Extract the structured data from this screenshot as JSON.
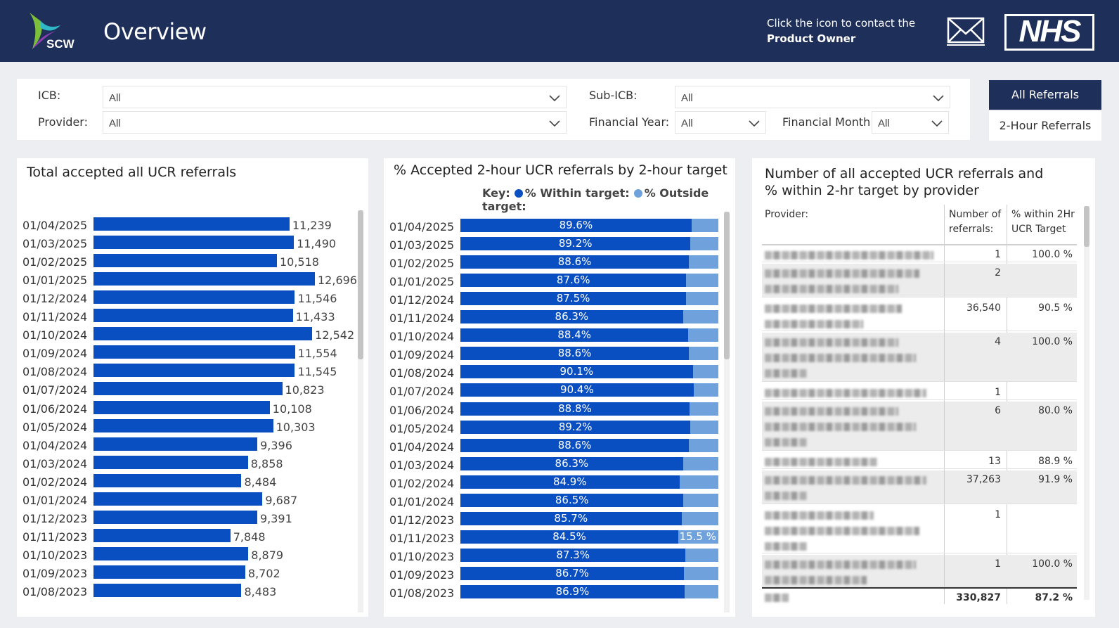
{
  "header": {
    "title": "Overview",
    "logo_text": "SCW",
    "contact_line1": "Click the icon to contact the",
    "contact_line2": "Product Owner",
    "nhs_logo": "NHS"
  },
  "filters": {
    "icb": {
      "label": "ICB:",
      "value": "All"
    },
    "provider": {
      "label": "Provider:",
      "value": "All"
    },
    "sub_icb": {
      "label": "Sub-ICB:",
      "value": "All"
    },
    "financial_year": {
      "label": "Financial Year:",
      "value": "All"
    },
    "financial_month": {
      "label": "Financial Month:",
      "value": "All"
    }
  },
  "toggle": {
    "all_referrals": "All Referrals",
    "two_hour_referrals": "2-Hour Referrals"
  },
  "colors": {
    "header_bg": "#1e2f5a",
    "bar_primary": "#0a4fc1",
    "bar_secondary": "#6fa2dc"
  },
  "panel1": {
    "title": "Total accepted all UCR referrals",
    "chart_data": {
      "type": "bar",
      "orientation": "horizontal",
      "categories": [
        "01/04/2025",
        "01/03/2025",
        "01/02/2025",
        "01/01/2025",
        "01/12/2024",
        "01/11/2024",
        "01/10/2024",
        "01/09/2024",
        "01/08/2024",
        "01/07/2024",
        "01/06/2024",
        "01/05/2024",
        "01/04/2024",
        "01/03/2024",
        "01/02/2024",
        "01/01/2024",
        "01/12/2023",
        "01/11/2023",
        "01/10/2023",
        "01/09/2023",
        "01/08/2023"
      ],
      "values": [
        11239,
        11490,
        10518,
        12696,
        11546,
        11433,
        12542,
        11554,
        11545,
        10823,
        10108,
        10303,
        9396,
        8858,
        8484,
        9687,
        9391,
        7848,
        8879,
        8702,
        8483
      ],
      "labels": [
        "11,239",
        "11,490",
        "10,518",
        "12,696",
        "11,546",
        "11,433",
        "12,542",
        "11,554",
        "11,545",
        "10,823",
        "10,108",
        "10,303",
        "9,396",
        "8,858",
        "8,484",
        "9,687",
        "9,391",
        "7,848",
        "8,879",
        "8,702",
        "8,483"
      ],
      "xlim": [
        0,
        12696
      ]
    }
  },
  "panel2": {
    "title": "% Accepted 2-hour UCR referrals by 2-hour target",
    "key_label": "Key:",
    "key_within": "% Within target:",
    "key_outside": "% Outside target:",
    "chart_data": {
      "type": "bar",
      "orientation": "horizontal",
      "stacked": true,
      "categories": [
        "01/04/2025",
        "01/03/2025",
        "01/02/2025",
        "01/01/2025",
        "01/12/2024",
        "01/11/2024",
        "01/10/2024",
        "01/09/2024",
        "01/08/2024",
        "01/07/2024",
        "01/06/2024",
        "01/05/2024",
        "01/04/2024",
        "01/03/2024",
        "01/02/2024",
        "01/01/2024",
        "01/12/2023",
        "01/11/2023",
        "01/10/2023",
        "01/09/2023",
        "01/08/2023"
      ],
      "series": [
        {
          "name": "% Within target",
          "values": [
            89.6,
            89.2,
            88.6,
            87.6,
            87.5,
            86.3,
            88.4,
            88.6,
            90.1,
            90.4,
            88.8,
            89.2,
            88.6,
            86.3,
            84.9,
            86.5,
            85.7,
            84.5,
            87.3,
            86.7,
            86.9
          ]
        },
        {
          "name": "% Outside target",
          "values": [
            10.4,
            10.8,
            11.4,
            12.4,
            12.5,
            13.7,
            11.6,
            11.4,
            9.9,
            9.6,
            11.2,
            10.8,
            11.4,
            13.7,
            15.1,
            13.5,
            14.3,
            15.5,
            12.7,
            13.3,
            13.1
          ]
        }
      ],
      "within_labels": [
        "89.6%",
        "89.2%",
        "88.6%",
        "87.6%",
        "87.5%",
        "86.3%",
        "88.4%",
        "88.6%",
        "90.1%",
        "90.4%",
        "88.8%",
        "89.2%",
        "88.6%",
        "86.3%",
        "84.9%",
        "86.5%",
        "85.7%",
        "84.5%",
        "87.3%",
        "86.7%",
        "86.9%"
      ],
      "outside_labels": [
        "",
        "",
        "",
        "",
        "",
        "",
        "",
        "",
        "",
        "",
        "",
        "",
        "",
        "",
        "",
        "",
        "",
        "15.5 %",
        "",
        "",
        ""
      ],
      "xlim": [
        0,
        100
      ]
    }
  },
  "panel3": {
    "title_line1": "Number of all accepted UCR referrals and",
    "title_line2": "% within 2-hr target by provider",
    "col_provider": "Provider:",
    "col_referrals_1": "Number of",
    "col_referrals_2": "referrals:",
    "col_pct_1": "% within 2Hr",
    "col_pct_2": "UCR Target",
    "rows": [
      {
        "referrals": "1",
        "pct": "100.0 %"
      },
      {
        "referrals": "2",
        "pct": ""
      },
      {
        "referrals": "36,540",
        "pct": "90.5 %"
      },
      {
        "referrals": "4",
        "pct": "100.0 %"
      },
      {
        "referrals": "1",
        "pct": ""
      },
      {
        "referrals": "6",
        "pct": "80.0 %"
      },
      {
        "referrals": "13",
        "pct": "88.9 %"
      },
      {
        "referrals": "37,263",
        "pct": "91.9 %"
      },
      {
        "referrals": "1",
        "pct": ""
      },
      {
        "referrals": "1",
        "pct": "100.0 %"
      }
    ],
    "total": {
      "referrals": "330,827",
      "pct": "87.2 %"
    }
  }
}
